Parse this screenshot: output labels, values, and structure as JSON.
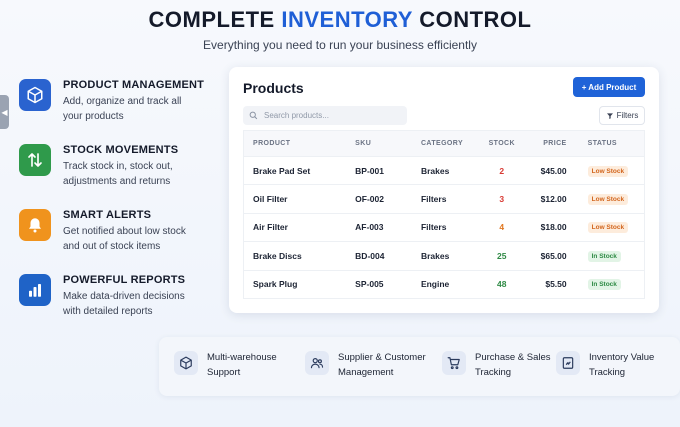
{
  "hero": {
    "title_part1": "COMPLETE ",
    "title_accent": "INVENTORY",
    "title_part2": " CONTROL",
    "subtitle": "Everything you need to run your business efficiently"
  },
  "features": [
    {
      "icon": "box-icon",
      "title": "PRODUCT MANAGEMENT",
      "desc": "Add, organize and track all your products"
    },
    {
      "icon": "swap-arrows-icon",
      "title": "STOCK MOVEMENTS",
      "desc": "Track stock in, stock out, adjustments and returns"
    },
    {
      "icon": "bell-icon",
      "title": "SMART ALERTS",
      "desc": "Get notified about low stock and out of stock items"
    },
    {
      "icon": "bar-chart-icon",
      "title": "POWERFUL REPORTS",
      "desc": "Make data-driven decisions with detailed reports"
    }
  ],
  "products_panel": {
    "title": "Products",
    "add_button": "+ Add Product",
    "search_placeholder": "Search products...",
    "filters_label": "Filters",
    "columns": [
      "PRODUCT",
      "SKU",
      "CATEGORY",
      "STOCK",
      "PRICE",
      "STATUS"
    ],
    "rows": [
      {
        "product": "Brake Pad Set",
        "sku": "BP-001",
        "category": "Brakes",
        "stock": "2",
        "price": "$45.00",
        "status": "Low Stock"
      },
      {
        "product": "Oil Filter",
        "sku": "OF-002",
        "category": "Filters",
        "stock": "3",
        "price": "$12.00",
        "status": "Low Stock"
      },
      {
        "product": "Air Filter",
        "sku": "AF-003",
        "category": "Filters",
        "stock": "4",
        "price": "$18.00",
        "status": "Low Stock"
      },
      {
        "product": "Brake Discs",
        "sku": "BD-004",
        "category": "Brakes",
        "stock": "25",
        "price": "$65.00",
        "status": "In Stock"
      },
      {
        "product": "Spark Plug",
        "sku": "SP-005",
        "category": "Engine",
        "stock": "48",
        "price": "$5.50",
        "status": "In Stock"
      }
    ]
  },
  "bottom_features": [
    {
      "icon": "warehouse-box-icon",
      "line1": "Multi-warehouse",
      "line2": "Support"
    },
    {
      "icon": "users-icon",
      "line1": "Supplier & Customer",
      "line2": "Management"
    },
    {
      "icon": "cart-icon",
      "line1": "Purchase & Sales",
      "line2": "Tracking"
    },
    {
      "icon": "valuation-icon",
      "line1": "Inventory Value",
      "line2": "Tracking"
    }
  ],
  "colors": {
    "accent": "#1f5fd6",
    "low_stock": "#d83a34",
    "in_stock": "#2f8a45"
  }
}
